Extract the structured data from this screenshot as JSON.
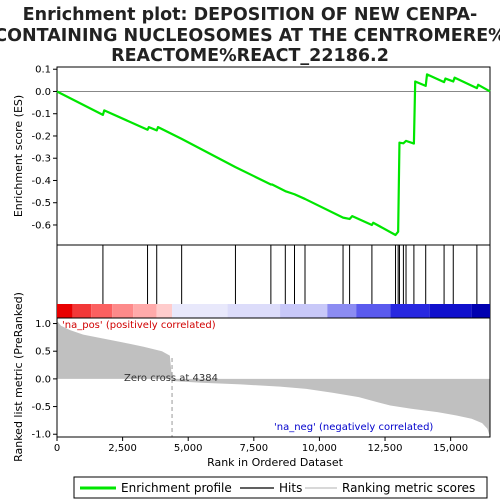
{
  "title_lines": [
    "Enrichment plot: DEPOSITION OF NEW CENPA-",
    "CONTAINING NUCLEOSOMES AT THE CENTROMERE%",
    "REACTOME%REACT_22186.2"
  ],
  "chart_data": {
    "type": "line",
    "x_total": 16500,
    "es_panel": {
      "ylabel": "Enrichment score (ES)",
      "ylim": [
        -0.69,
        0.11
      ],
      "yticks": [
        0.1,
        0.0,
        -0.1,
        -0.2,
        -0.3,
        -0.4,
        -0.5,
        -0.6
      ],
      "ytick_labels": [
        "0.1",
        "0.0",
        "-0.1",
        "-0.2",
        "-0.3",
        "-0.4",
        "-0.5",
        "-0.6"
      ],
      "line_color": "#00e600",
      "zero_line_color": "#888888",
      "profile": [
        [
          0,
          0.0
        ],
        [
          1750,
          -0.105
        ],
        [
          1800,
          -0.085
        ],
        [
          3450,
          -0.172
        ],
        [
          3500,
          -0.16
        ],
        [
          3800,
          -0.175
        ],
        [
          3850,
          -0.16
        ],
        [
          4750,
          -0.213
        ],
        [
          6800,
          -0.34
        ],
        [
          8150,
          -0.418
        ],
        [
          8200,
          -0.418
        ],
        [
          8700,
          -0.448
        ],
        [
          9050,
          -0.462
        ],
        [
          9450,
          -0.483
        ],
        [
          10900,
          -0.567
        ],
        [
          11150,
          -0.573
        ],
        [
          11250,
          -0.56
        ],
        [
          12000,
          -0.6
        ],
        [
          12050,
          -0.59
        ],
        [
          12900,
          -0.645
        ],
        [
          13000,
          -0.63
        ],
        [
          13050,
          -0.23
        ],
        [
          13200,
          -0.233
        ],
        [
          13300,
          -0.222
        ],
        [
          13600,
          -0.234
        ],
        [
          13650,
          0.045
        ],
        [
          14050,
          0.025
        ],
        [
          14100,
          0.077
        ],
        [
          14750,
          0.042
        ],
        [
          14800,
          0.058
        ],
        [
          15100,
          0.045
        ],
        [
          15150,
          0.062
        ],
        [
          16000,
          0.015
        ],
        [
          16050,
          0.03
        ],
        [
          16500,
          0.0
        ]
      ]
    },
    "hits": [
      1750,
      3450,
      3800,
      4750,
      6800,
      8150,
      8700,
      9050,
      9450,
      10900,
      11150,
      12000,
      12900,
      13000,
      13050,
      13200,
      13300,
      13600,
      14050,
      14750,
      15100,
      16000
    ],
    "rank_colorbar": [
      {
        "from": 0,
        "to": 600,
        "color": "#e80000"
      },
      {
        "from": 600,
        "to": 1300,
        "color": "#f23838"
      },
      {
        "from": 1300,
        "to": 2100,
        "color": "#fb6060"
      },
      {
        "from": 2100,
        "to": 2900,
        "color": "#fd8a8a"
      },
      {
        "from": 2900,
        "to": 3800,
        "color": "#ffaaaa"
      },
      {
        "from": 3800,
        "to": 4384,
        "color": "#ffcccc"
      },
      {
        "from": 4384,
        "to": 6500,
        "color": "#e8e8fb"
      },
      {
        "from": 6500,
        "to": 8500,
        "color": "#dcdcfa"
      },
      {
        "from": 8500,
        "to": 10300,
        "color": "#c8c8f8"
      },
      {
        "from": 10300,
        "to": 11400,
        "color": "#8c8cf2"
      },
      {
        "from": 11400,
        "to": 12700,
        "color": "#5a5aee"
      },
      {
        "from": 12700,
        "to": 14200,
        "color": "#2828e0"
      },
      {
        "from": 14200,
        "to": 15800,
        "color": "#1010cc"
      },
      {
        "from": 15800,
        "to": 16500,
        "color": "#0000b0"
      }
    ],
    "ranked_metric_panel": {
      "ylabel": "Ranked list metric (PreRanked)",
      "ylim": [
        -1.05,
        1.1
      ],
      "yticks": [
        1.0,
        0.5,
        0.0,
        -0.5,
        -1.0
      ],
      "ytick_labels": [
        "1.0",
        "0.5",
        "0.0",
        "-0.5",
        "-1.0"
      ],
      "fill_color": "#c0c0c0",
      "curve": [
        [
          0,
          1.05
        ],
        [
          150,
          0.96
        ],
        [
          500,
          0.88
        ],
        [
          1000,
          0.8
        ],
        [
          1750,
          0.73
        ],
        [
          2500,
          0.66
        ],
        [
          3300,
          0.58
        ],
        [
          4000,
          0.5
        ],
        [
          4300,
          0.42
        ],
        [
          4384,
          0.0
        ],
        [
          4450,
          -0.04
        ],
        [
          5500,
          -0.07
        ],
        [
          7000,
          -0.1
        ],
        [
          8500,
          -0.14
        ],
        [
          9500,
          -0.18
        ],
        [
          10500,
          -0.25
        ],
        [
          11500,
          -0.33
        ],
        [
          12200,
          -0.42
        ],
        [
          12700,
          -0.48
        ],
        [
          13500,
          -0.54
        ],
        [
          14500,
          -0.6
        ],
        [
          15200,
          -0.66
        ],
        [
          15800,
          -0.72
        ],
        [
          16200,
          -0.8
        ],
        [
          16400,
          -0.9
        ],
        [
          16500,
          -1.05
        ]
      ],
      "zero_cross": 4384
    },
    "annotations": {
      "pos": "'na_pos' (positively correlated)",
      "neg": "'na_neg' (negatively correlated)",
      "zero_cross": "Zero cross at 4384"
    },
    "xaxis": {
      "label": "Rank in Ordered Dataset",
      "ticks": [
        0,
        2500,
        5000,
        7500,
        10000,
        12500,
        15000
      ],
      "tick_labels": [
        "0",
        "2,500",
        "5,000",
        "7,500",
        "10,000",
        "12,500",
        "15,000"
      ]
    },
    "legend": [
      {
        "label": "Enrichment profile",
        "color": "#00e600",
        "style": "thick-line"
      },
      {
        "label": "Hits",
        "color": "#000000",
        "style": "line"
      },
      {
        "label": "Ranking metric scores",
        "color": "#c0c0c0",
        "style": "line"
      }
    ]
  }
}
